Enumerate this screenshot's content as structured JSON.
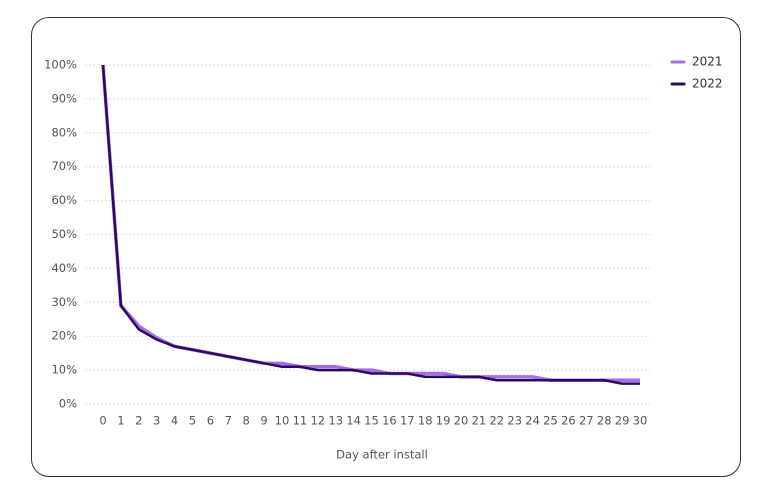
{
  "chart_data": {
    "type": "line",
    "x_label": "Day after install",
    "x": [
      0,
      1,
      2,
      3,
      4,
      5,
      6,
      7,
      8,
      9,
      10,
      11,
      12,
      13,
      14,
      15,
      16,
      17,
      18,
      19,
      20,
      21,
      22,
      23,
      24,
      25,
      26,
      27,
      28,
      29,
      30
    ],
    "xlim": [
      0,
      30
    ],
    "xticks": [
      0,
      1,
      2,
      3,
      4,
      5,
      6,
      7,
      8,
      9,
      10,
      11,
      12,
      13,
      14,
      15,
      16,
      17,
      18,
      19,
      20,
      21,
      22,
      23,
      24,
      25,
      26,
      27,
      28,
      29,
      30
    ],
    "ylim": [
      0,
      100
    ],
    "yticks": [
      {
        "value": 0,
        "label": "0%"
      },
      {
        "value": 10,
        "label": "10%"
      },
      {
        "value": 20,
        "label": "20%"
      },
      {
        "value": 30,
        "label": "30%"
      },
      {
        "value": 40,
        "label": "40%"
      },
      {
        "value": 50,
        "label": "50%"
      },
      {
        "value": 60,
        "label": "60%"
      },
      {
        "value": 70,
        "label": "70%"
      },
      {
        "value": 80,
        "label": "80%"
      },
      {
        "value": 90,
        "label": "90%"
      },
      {
        "value": 100,
        "label": "100%"
      }
    ],
    "grid": true,
    "legend": "top-right",
    "series": [
      {
        "name": "2021",
        "color": "#a66ee6",
        "values": [
          100,
          29,
          23,
          19.5,
          17,
          16,
          15,
          14,
          13,
          12,
          12,
          11,
          11,
          11,
          10,
          10,
          9,
          9,
          9,
          9,
          8,
          8,
          8,
          8,
          8,
          7,
          7,
          7,
          7,
          7,
          7
        ]
      },
      {
        "name": "2022",
        "color": "#2c0b5c",
        "values": [
          100,
          29,
          22,
          19,
          17,
          16,
          15,
          14,
          13,
          12,
          11,
          11,
          10,
          10,
          10,
          9,
          9,
          9,
          8,
          8,
          8,
          8,
          7,
          7,
          7,
          7,
          7,
          7,
          7,
          6,
          6
        ]
      }
    ]
  }
}
